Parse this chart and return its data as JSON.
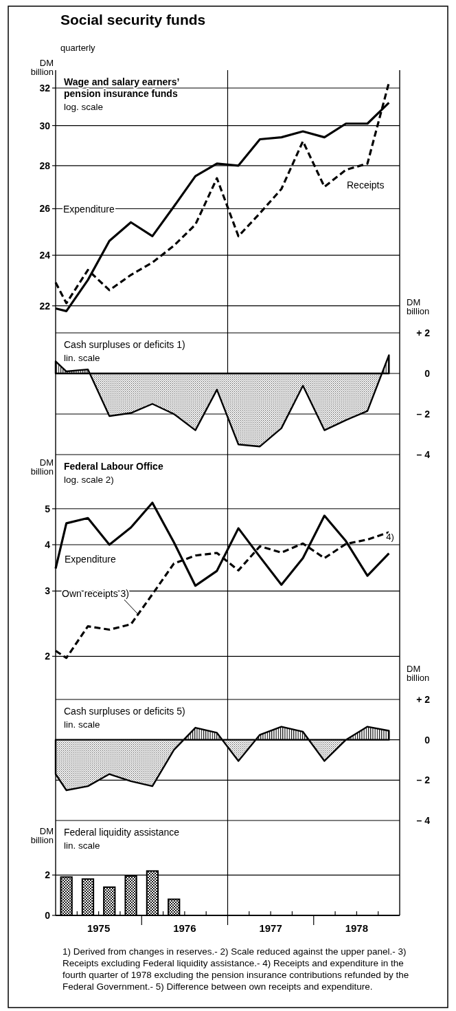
{
  "chart_data": [
    {
      "type": "other",
      "title": "Social security funds",
      "subtitle": "quarterly"
    },
    {
      "type": "line",
      "title": "Wage and salary earners’ pension insurance funds",
      "subtitle": "log. scale",
      "ylabel": "DM billion",
      "log": true,
      "grid": "y",
      "marker": "none",
      "x": [
        1975,
        1975.125,
        1975.375,
        1975.625,
        1975.875,
        1976.125,
        1976.375,
        1976.625,
        1976.875,
        1977.125,
        1977.375,
        1977.625,
        1977.875,
        1978.125,
        1978.375,
        1978.625,
        1978.875
      ],
      "xlim": [
        1975,
        1979
      ],
      "ylim": [
        21,
        33
      ],
      "yticks": [
        22,
        24,
        26,
        28,
        30,
        32
      ],
      "ref_lines": [
        {
          "axis": "x",
          "value": 1977
        }
      ],
      "series": [
        {
          "name": "Expenditure",
          "color": "#000000",
          "line_style": "solid",
          "values": [
            21.9,
            21.8,
            23.0,
            24.6,
            25.4,
            24.8,
            26.1,
            27.5,
            28.1,
            28.0,
            29.3,
            29.4,
            29.7,
            29.4,
            30.1,
            30.1,
            31.2
          ]
        },
        {
          "name": "Receipts",
          "color": "#000000",
          "line_style": "dashed",
          "values": [
            22.9,
            22.1,
            23.4,
            22.6,
            23.2,
            23.7,
            24.4,
            25.3,
            27.4,
            24.8,
            25.8,
            26.9,
            29.2,
            27.0,
            27.8,
            28.1,
            32.3
          ]
        }
      ]
    },
    {
      "type": "area",
      "title": "Cash surpluses or deficits 1)",
      "subtitle": "lin. scale",
      "y2label": "DM billion",
      "grid": "y",
      "x": [
        1975,
        1975.125,
        1975.375,
        1975.625,
        1975.875,
        1976.125,
        1976.375,
        1976.625,
        1976.875,
        1977.125,
        1977.375,
        1977.625,
        1977.875,
        1978.125,
        1978.375,
        1978.625,
        1978.875
      ],
      "xlim": [
        1975,
        1979
      ],
      "y2lim": [
        -4,
        2
      ],
      "y2ticks": [
        {
          "value": 2,
          "label": "+ 2"
        },
        0,
        {
          "value": -2,
          "label": "– 2"
        },
        {
          "value": -4,
          "label": "– 4"
        }
      ],
      "ref_lines": [
        {
          "axis": "x",
          "value": 1977
        }
      ],
      "series": [
        {
          "color": "#000000",
          "axis": "y2",
          "values": [
            0.6,
            0.1,
            0.2,
            -2.1,
            -1.95,
            -1.5,
            -2.0,
            -2.8,
            -0.8,
            -3.5,
            -3.6,
            -2.7,
            -0.6,
            -2.8,
            -2.3,
            -1.85,
            0.9
          ]
        }
      ]
    },
    {
      "type": "line",
      "title": "Federal Labour Office",
      "subtitle": "log. scale 2)",
      "ylabel": "DM billion",
      "log": true,
      "grid": "y",
      "marker": "none",
      "x": [
        1975,
        1975.125,
        1975.375,
        1975.625,
        1975.875,
        1976.125,
        1976.375,
        1976.625,
        1976.875,
        1977.125,
        1977.375,
        1977.625,
        1977.875,
        1978.125,
        1978.375,
        1978.625,
        1978.875
      ],
      "xlim": [
        1975,
        1979
      ],
      "ylim": [
        1.53,
        7
      ],
      "yticks": [
        2,
        3,
        4,
        5
      ],
      "ref_lines": [
        {
          "axis": "x",
          "value": 1977
        }
      ],
      "annotations": [
        "4)"
      ],
      "series": [
        {
          "name": "Expenditure",
          "color": "#000000",
          "line_style": "solid",
          "values": [
            3.45,
            4.57,
            4.72,
            4.0,
            4.45,
            5.19,
            4.06,
            3.1,
            3.4,
            4.43,
            3.71,
            3.12,
            3.68,
            4.79,
            4.09,
            3.3,
            3.79
          ]
        },
        {
          "name": "Own receipts 3)",
          "color": "#000000",
          "line_style": "dashed",
          "values": [
            2.07,
            1.98,
            2.41,
            2.36,
            2.44,
            2.94,
            3.56,
            3.74,
            3.8,
            3.41,
            3.96,
            3.81,
            4.03,
            3.68,
            4.02,
            4.13,
            4.32
          ]
        }
      ]
    },
    {
      "type": "area",
      "title": "Cash surpluses or deficits 5)",
      "subtitle": "lin. scale",
      "y2label": "DM billion",
      "grid": "y",
      "x": [
        1975,
        1975.125,
        1975.375,
        1975.625,
        1975.875,
        1976.125,
        1976.375,
        1976.625,
        1976.875,
        1977.125,
        1977.375,
        1977.625,
        1977.875,
        1978.125,
        1978.375,
        1978.625,
        1978.875
      ],
      "xlim": [
        1975,
        1979
      ],
      "y2lim": [
        -4,
        2
      ],
      "y2ticks": [
        {
          "value": 2,
          "label": "+ 2"
        },
        0,
        {
          "value": -2,
          "label": "– 2"
        },
        {
          "value": -4,
          "label": "– 4"
        }
      ],
      "ref_lines": [
        {
          "axis": "x",
          "value": 1977
        }
      ],
      "series": [
        {
          "color": "#000000",
          "axis": "y2",
          "values": [
            -1.7,
            -2.5,
            -2.3,
            -1.7,
            -2.05,
            -2.3,
            -0.5,
            0.6,
            0.35,
            -1.05,
            0.25,
            0.65,
            0.4,
            -1.05,
            0,
            0.65,
            0.45
          ]
        }
      ]
    },
    {
      "type": "bar",
      "title": "Federal liquidity assistance",
      "subtitle": "lin. scale",
      "ylabel": "DM billion",
      "grid": "y",
      "x": [
        1975.125,
        1975.375,
        1975.625,
        1975.875,
        1976.125,
        1976.375
      ],
      "xlim": [
        1975,
        1979
      ],
      "ylim": [
        0,
        4.7
      ],
      "yticks": [
        0,
        2
      ],
      "xticks": [
        {
          "value": 1975.25,
          "label": null
        },
        {
          "value": 1975.5,
          "label": "1975"
        },
        {
          "value": 1975.75,
          "label": null
        },
        {
          "value": 1976,
          "label": null
        },
        {
          "value": 1976.25,
          "label": null
        },
        {
          "value": 1976.5,
          "label": "1976"
        },
        {
          "value": 1976.75,
          "label": null
        },
        {
          "value": 1977,
          "label": null
        },
        {
          "value": 1977.25,
          "label": null
        },
        {
          "value": 1977.5,
          "label": "1977"
        },
        {
          "value": 1977.75,
          "label": null
        },
        {
          "value": 1978,
          "label": null
        },
        {
          "value": 1978.25,
          "label": null
        },
        {
          "value": 1978.5,
          "label": "1978"
        },
        {
          "value": 1978.75,
          "label": null
        }
      ],
      "ref_lines": [
        {
          "axis": "x",
          "value": 1977
        }
      ],
      "annotations": [
        "1) Derived from changes in reserves.- 2) Scale reduced against the upper panel.- 3) Receipts excluding Federal liquidity assistance.- 4) Receipts and expenditure in the fourth quarter of 1978 excluding the pension insurance contributions refunded by the Federal Government.- 5) Difference between own receipts and expenditure."
      ],
      "series": [
        {
          "color": "#000000",
          "values": [
            1.9,
            1.8,
            1.4,
            1.95,
            2.2,
            0.8
          ]
        }
      ]
    }
  ]
}
